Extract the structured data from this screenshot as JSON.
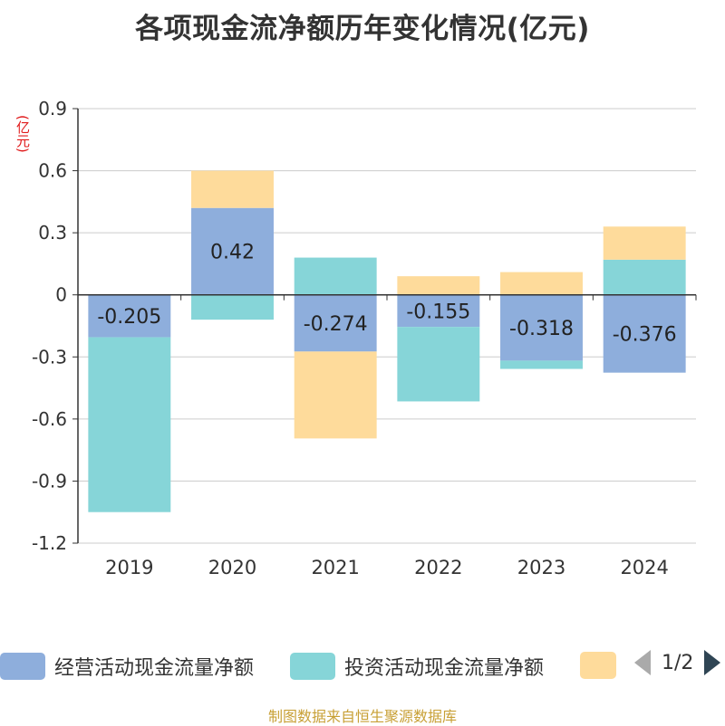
{
  "title": "各项现金流净额历年变化情况(亿元)",
  "unit_label": "(亿元)",
  "source": "制图数据来自恒生聚源数据库",
  "legend": {
    "items": [
      {
        "label": "经营活动现金流量净额",
        "color": "#8eaedc"
      },
      {
        "label": "投资活动现金流量净额",
        "color": "#86d5d8"
      },
      {
        "label": "",
        "color": "#fedb9b"
      }
    ],
    "page_indicator": "1/2"
  },
  "chart_data": {
    "type": "bar",
    "stacked": true,
    "title": "各项现金流净额历年变化情况(亿元)",
    "ylabel": "(亿元)",
    "ylim": [
      -1.2,
      0.9
    ],
    "yticks": [
      0.9,
      0.6,
      0.3,
      0,
      -0.3,
      -0.6,
      -0.9,
      -1.2
    ],
    "categories": [
      "2019",
      "2020",
      "2021",
      "2022",
      "2023",
      "2024"
    ],
    "series": [
      {
        "name": "经营活动现金流量净额",
        "color": "#8eaedc",
        "values": [
          -0.205,
          0.42,
          -0.274,
          -0.155,
          -0.318,
          -0.376
        ],
        "show_labels": true
      },
      {
        "name": "投资活动现金流量净额",
        "color": "#86d5d8",
        "values": [
          -0.845,
          -0.12,
          0.18,
          -0.36,
          -0.04,
          0.17
        ],
        "show_labels": false
      },
      {
        "name": "",
        "color": "#fedb9b",
        "values": [
          0.0,
          0.18,
          -0.42,
          0.09,
          0.11,
          0.16
        ],
        "show_labels": false
      }
    ],
    "grid": true,
    "legend_position": "bottom"
  }
}
